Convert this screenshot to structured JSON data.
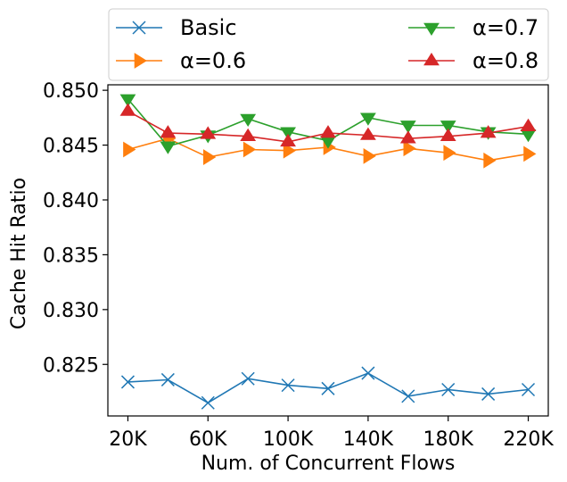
{
  "chart_data": {
    "type": "line",
    "xlabel": "Num. of Concurrent Flows",
    "ylabel": "Cache Hit Ratio",
    "x": [
      20,
      40,
      60,
      80,
      100,
      120,
      140,
      160,
      180,
      200,
      220
    ],
    "x_unit": "K",
    "x_ticks": [
      20,
      60,
      100,
      140,
      180,
      220
    ],
    "x_tick_labels": [
      "20K",
      "60K",
      "100K",
      "140K",
      "180K",
      "220K"
    ],
    "xlim": [
      10,
      230
    ],
    "y_ticks": [
      0.825,
      0.83,
      0.835,
      0.84,
      0.845,
      0.85
    ],
    "y_tick_labels": [
      "0.825",
      "0.830",
      "0.835",
      "0.840",
      "0.845",
      "0.850"
    ],
    "ylim": [
      0.8203,
      0.8505
    ],
    "grid": false,
    "legend_placement": "top (above plot), two columns",
    "series": [
      {
        "name": "Basic",
        "color": "#1f77b4",
        "marker": "x",
        "values": [
          0.8234,
          0.8236,
          0.8215,
          0.8237,
          0.8231,
          0.8228,
          0.8242,
          0.8221,
          0.8227,
          0.8223,
          0.8227
        ]
      },
      {
        "name": "α=0.6",
        "color": "#ff7f0e",
        "marker": "triangle-right",
        "values": [
          0.8446,
          0.8456,
          0.8439,
          0.8446,
          0.8445,
          0.8448,
          0.844,
          0.8447,
          0.8443,
          0.8436,
          0.8442
        ]
      },
      {
        "name": "α=0.7",
        "color": "#2ca02c",
        "marker": "triangle-down",
        "values": [
          0.8492,
          0.8449,
          0.8459,
          0.8474,
          0.8462,
          0.8454,
          0.8475,
          0.8468,
          0.8468,
          0.8462,
          0.846
        ]
      },
      {
        "name": "α=0.8",
        "color": "#d62728",
        "marker": "triangle-up",
        "values": [
          0.8481,
          0.8461,
          0.846,
          0.8458,
          0.8453,
          0.8461,
          0.8459,
          0.8456,
          0.8458,
          0.8461,
          0.8467
        ]
      }
    ]
  }
}
